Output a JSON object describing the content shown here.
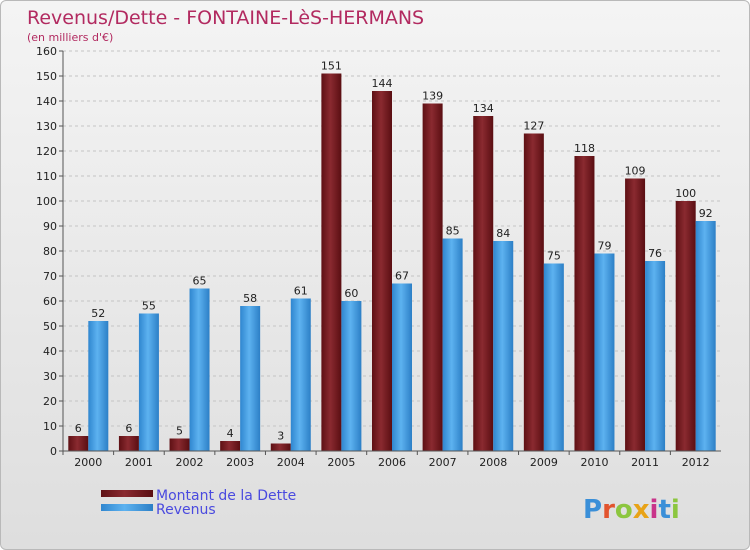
{
  "colors": {
    "title": "#b22a60",
    "debt": "#7a1e22",
    "revenue": "#4aa3e6",
    "legend_text": "#4a4adf"
  },
  "logo": "Proxiti",
  "chart_data": {
    "type": "bar",
    "title": "Revenus/Dette - FONTAINE-LèS-HERMANS",
    "subtitle": "(en milliers d'€)",
    "categories": [
      "2000",
      "2001",
      "2002",
      "2003",
      "2004",
      "2005",
      "2006",
      "2007",
      "2008",
      "2009",
      "2010",
      "2011",
      "2012"
    ],
    "series": [
      {
        "name": "Montant de la Dette",
        "values": [
          6,
          6,
          5,
          4,
          3,
          151,
          144,
          139,
          134,
          127,
          118,
          109,
          100
        ]
      },
      {
        "name": "Revenus",
        "values": [
          52,
          55,
          65,
          58,
          61,
          60,
          67,
          85,
          84,
          75,
          79,
          76,
          92
        ]
      }
    ],
    "ylim": [
      0,
      160
    ],
    "yticks": [
      0,
      10,
      20,
      30,
      40,
      50,
      60,
      70,
      80,
      90,
      100,
      110,
      120,
      130,
      140,
      150,
      160
    ],
    "grid": true,
    "legend": "bottom-left"
  }
}
